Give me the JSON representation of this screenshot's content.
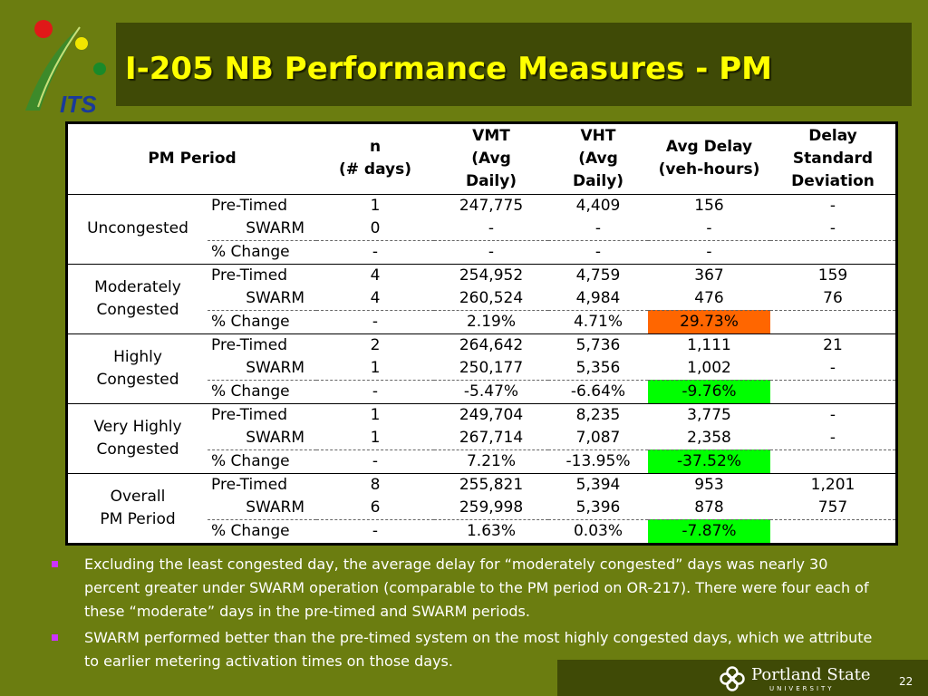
{
  "logo": {
    "text": "ITS"
  },
  "title": "I-205 NB Performance Measures - PM",
  "table": {
    "headers": {
      "period": "PM Period",
      "n": [
        "n",
        "(# days)"
      ],
      "vmt": [
        "VMT",
        "(Avg",
        "Daily)"
      ],
      "vht": [
        "VHT",
        "(Avg",
        "Daily)"
      ],
      "delay": [
        "Avg Delay",
        "(veh-hours)"
      ],
      "sd": [
        "Delay",
        "Standard",
        "Deviation"
      ]
    },
    "groups": [
      {
        "period": [
          "Uncongested"
        ],
        "rows": [
          {
            "system": "Pre-Timed",
            "n": "1",
            "vmt": "247,775",
            "vht": "4,409",
            "delay": "156",
            "sd": "-"
          },
          {
            "system": "SWARM",
            "n": "0",
            "vmt": "-",
            "vht": "-",
            "delay": "-",
            "sd": "-"
          },
          {
            "system": "% Change",
            "n": "-",
            "vmt": "-",
            "vht": "-",
            "delay": "-",
            "sd": ""
          }
        ]
      },
      {
        "period": [
          "Moderately",
          "Congested"
        ],
        "rows": [
          {
            "system": "Pre-Timed",
            "n": "4",
            "vmt": "254,952",
            "vht": "4,759",
            "delay": "367",
            "sd": "159"
          },
          {
            "system": "SWARM",
            "n": "4",
            "vmt": "260,524",
            "vht": "4,984",
            "delay": "476",
            "sd": "76"
          },
          {
            "system": "% Change",
            "n": "-",
            "vmt": "2.19%",
            "vht": "4.71%",
            "delay": "29.73%",
            "sd": ""
          }
        ]
      },
      {
        "period": [
          "Highly",
          "Congested"
        ],
        "rows": [
          {
            "system": "Pre-Timed",
            "n": "2",
            "vmt": "264,642",
            "vht": "5,736",
            "delay": "1,111",
            "sd": "21"
          },
          {
            "system": "SWARM",
            "n": "1",
            "vmt": "250,177",
            "vht": "5,356",
            "delay": "1,002",
            "sd": "-"
          },
          {
            "system": "% Change",
            "n": "-",
            "vmt": "-5.47%",
            "vht": "-6.64%",
            "delay": "-9.76%",
            "sd": ""
          }
        ]
      },
      {
        "period": [
          "Very Highly",
          "Congested"
        ],
        "rows": [
          {
            "system": "Pre-Timed",
            "n": "1",
            "vmt": "249,704",
            "vht": "8,235",
            "delay": "3,775",
            "sd": "-"
          },
          {
            "system": "SWARM",
            "n": "1",
            "vmt": "267,714",
            "vht": "7,087",
            "delay": "2,358",
            "sd": "-"
          },
          {
            "system": "% Change",
            "n": "-",
            "vmt": "7.21%",
            "vht": "-13.95%",
            "delay": "-37.52%",
            "sd": ""
          }
        ]
      },
      {
        "period": [
          "Overall",
          "PM Period"
        ],
        "rows": [
          {
            "system": "Pre-Timed",
            "n": "8",
            "vmt": "255,821",
            "vht": "5,394",
            "delay": "953",
            "sd": "1,201"
          },
          {
            "system": "SWARM",
            "n": "6",
            "vmt": "259,998",
            "vht": "5,396",
            "delay": "878",
            "sd": "757"
          },
          {
            "system": "% Change",
            "n": "-",
            "vmt": "1.63%",
            "vht": "0.03%",
            "delay": "-7.87%",
            "sd": ""
          }
        ]
      }
    ],
    "highlight_colors": {
      "increase": "#ff6600",
      "decrease": "#00ff00"
    }
  },
  "bullets": [
    "Excluding the least congested day, the average delay for “moderately congested” days was nearly 30 percent greater under SWARM operation (comparable to the PM period on OR-217). There were four each of these “moderate” days in the pre-timed and SWARM periods.",
    "SWARM performed better than the pre-timed system on the most highly congested days, which we attribute to earlier metering activation times on those days."
  ],
  "footer": {
    "university": "Portland State",
    "university_sub": "UNIVERSITY",
    "page_number": "22"
  },
  "colors": {
    "background": "#6b7d10",
    "title_band": "#3f4a06",
    "title_text": "#ffff00",
    "bullet_marker": "#cc33ff"
  }
}
